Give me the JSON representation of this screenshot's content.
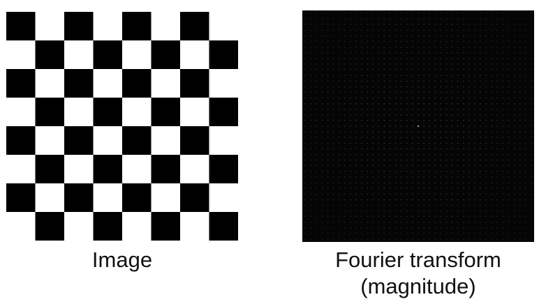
{
  "left_panel": {
    "caption": "Image",
    "pattern": "checkerboard",
    "grid_cells": 8,
    "colors": {
      "dark": "#000000",
      "light": "#ffffff"
    }
  },
  "right_panel": {
    "caption_line1": "Fourier transform",
    "caption_line2": "(magnitude)",
    "background_color": "#050505",
    "dot_color": "#8a8a8a",
    "dot_grid": 41
  }
}
